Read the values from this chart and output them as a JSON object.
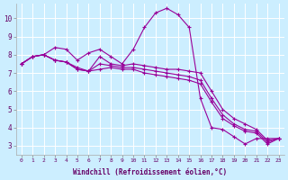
{
  "title": "",
  "xlabel": "Windchill (Refroidissement éolien,°C)",
  "ylabel": "",
  "background_color": "#cceeff",
  "line_color": "#990099",
  "x_ticks": [
    0,
    1,
    2,
    3,
    4,
    5,
    6,
    7,
    8,
    9,
    10,
    11,
    12,
    13,
    14,
    15,
    16,
    17,
    18,
    19,
    20,
    21,
    22,
    23
  ],
  "y_ticks": [
    3,
    4,
    5,
    6,
    7,
    8,
    9,
    10
  ],
  "xlim": [
    -0.5,
    23.5
  ],
  "ylim": [
    2.5,
    10.8
  ],
  "series": [
    [
      7.5,
      7.9,
      8.0,
      8.4,
      8.3,
      7.7,
      8.1,
      8.3,
      7.9,
      7.5,
      8.3,
      9.5,
      10.3,
      10.55,
      10.2,
      9.5,
      5.6,
      4.0,
      3.9,
      3.5,
      3.1,
      3.4,
      3.4,
      3.4
    ],
    [
      7.5,
      7.9,
      8.0,
      7.7,
      7.6,
      7.3,
      7.1,
      7.9,
      7.5,
      7.4,
      7.5,
      7.4,
      7.3,
      7.2,
      7.2,
      7.1,
      7.0,
      6.0,
      5.0,
      4.5,
      4.2,
      3.9,
      3.3,
      3.4
    ],
    [
      7.5,
      7.9,
      8.0,
      7.7,
      7.6,
      7.2,
      7.1,
      7.5,
      7.4,
      7.3,
      7.3,
      7.2,
      7.1,
      7.0,
      6.9,
      6.8,
      6.6,
      5.6,
      4.7,
      4.2,
      3.9,
      3.8,
      3.2,
      3.4
    ],
    [
      7.5,
      7.9,
      8.0,
      7.7,
      7.6,
      7.2,
      7.1,
      7.2,
      7.3,
      7.2,
      7.2,
      7.0,
      6.9,
      6.8,
      6.7,
      6.6,
      6.4,
      5.4,
      4.5,
      4.1,
      3.8,
      3.7,
      3.1,
      3.4
    ]
  ]
}
